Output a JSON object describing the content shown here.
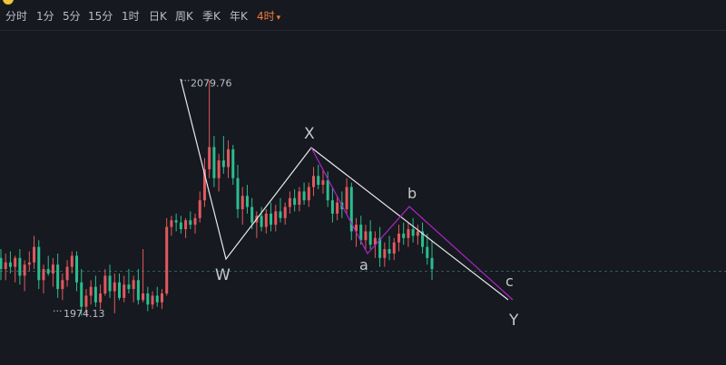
{
  "toolbar": {
    "periods": [
      {
        "label": "分时"
      },
      {
        "label": "1分"
      },
      {
        "label": "5分"
      },
      {
        "label": "15分"
      },
      {
        "label": "1时"
      },
      {
        "label": "日K"
      },
      {
        "label": "周K"
      },
      {
        "label": "季K"
      },
      {
        "label": "年K"
      },
      {
        "label": "4时",
        "active": true
      }
    ],
    "caret": "▾"
  },
  "colors": {
    "background": "#16191f",
    "up": "#e0595f",
    "down": "#2bbd8f",
    "wave_white": "#e8e8e8",
    "wave_purple": "#b024c9",
    "dashed_level": "#2f5a57",
    "active_period": "#f07c3e",
    "label": "#c7c9cc"
  },
  "chart_data": {
    "type": "candlestick",
    "price_range": [
      1955,
      2100
    ],
    "high_marker": {
      "label": "2079.76",
      "value": 2079.76
    },
    "low_marker": {
      "label": "1974.13",
      "value": 1974.13
    },
    "dashed_level": 1994,
    "candles": [
      [
        2000,
        2004,
        1990,
        1995
      ],
      [
        1995,
        2002,
        1990,
        1998
      ],
      [
        1998,
        2003,
        1993,
        1996
      ],
      [
        1996,
        2001,
        1989,
        2000
      ],
      [
        2000,
        2004,
        1988,
        1992
      ],
      [
        1992,
        1999,
        1985,
        1997
      ],
      [
        1997,
        2003,
        1994,
        1998
      ],
      [
        1998,
        2010,
        1995,
        2005
      ],
      [
        2005,
        2008,
        1986,
        1990
      ],
      [
        1990,
        1997,
        1984,
        1995
      ],
      [
        1995,
        2001,
        1992,
        1993
      ],
      [
        1993,
        2000,
        1987,
        1997
      ],
      [
        1997,
        2002,
        1982,
        1986
      ],
      [
        1986,
        1993,
        1981,
        1990
      ],
      [
        1990,
        1999,
        1987,
        1996
      ],
      [
        1996,
        2003,
        1993,
        2001
      ],
      [
        2001,
        2003,
        1985,
        1989
      ],
      [
        1989,
        1995,
        1974,
        1978
      ],
      [
        1978,
        1986,
        1974,
        1983
      ],
      [
        1983,
        1990,
        1979,
        1987
      ],
      [
        1987,
        1992,
        1978,
        1980
      ],
      [
        1980,
        1988,
        1977,
        1984
      ],
      [
        1984,
        1995,
        1983,
        1992
      ],
      [
        1992,
        1997,
        1982,
        1985
      ],
      [
        1985,
        1993,
        1975,
        1989
      ],
      [
        1989,
        1993,
        1981,
        1982
      ],
      [
        1982,
        1992,
        1980,
        1988
      ],
      [
        1988,
        1995,
        1984,
        1986
      ],
      [
        1986,
        1992,
        1980,
        1990
      ],
      [
        1990,
        1995,
        1979,
        1981
      ],
      [
        1981,
        2004,
        1980,
        1984
      ],
      [
        1984,
        1987,
        1976,
        1979
      ],
      [
        1979,
        1985,
        1977,
        1983
      ],
      [
        1983,
        1987,
        1978,
        1980
      ],
      [
        1980,
        1986,
        1977,
        1984
      ],
      [
        1984,
        2018,
        1983,
        2014
      ],
      [
        2014,
        2019,
        2010,
        2017
      ],
      [
        2017,
        2020,
        2012,
        2016
      ],
      [
        2016,
        2019,
        2011,
        2013
      ],
      [
        2013,
        2018,
        2009,
        2017
      ],
      [
        2017,
        2021,
        2013,
        2015
      ],
      [
        2015,
        2020,
        2011,
        2018
      ],
      [
        2018,
        2030,
        2016,
        2026
      ],
      [
        2026,
        2045,
        2023,
        2040
      ],
      [
        2040,
        2080,
        2036,
        2050
      ],
      [
        2050,
        2055,
        2032,
        2036
      ],
      [
        2036,
        2047,
        2030,
        2044
      ],
      [
        2044,
        2055,
        2038,
        2041
      ],
      [
        2041,
        2053,
        2036,
        2049
      ],
      [
        2049,
        2051,
        2033,
        2036
      ],
      [
        2036,
        2042,
        2018,
        2022
      ],
      [
        2022,
        2032,
        2015,
        2028
      ],
      [
        2028,
        2033,
        2020,
        2023
      ],
      [
        2023,
        2027,
        2013,
        2016
      ],
      [
        2016,
        2021,
        2009,
        2019
      ],
      [
        2019,
        2023,
        2012,
        2014
      ],
      [
        2014,
        2022,
        2011,
        2020
      ],
      [
        2020,
        2025,
        2012,
        2015
      ],
      [
        2015,
        2024,
        2012,
        2021
      ],
      [
        2021,
        2027,
        2016,
        2018
      ],
      [
        2018,
        2025,
        2015,
        2023
      ],
      [
        2023,
        2030,
        2020,
        2027
      ],
      [
        2027,
        2031,
        2021,
        2024
      ],
      [
        2024,
        2032,
        2021,
        2030
      ],
      [
        2030,
        2034,
        2024,
        2026
      ],
      [
        2026,
        2034,
        2023,
        2032
      ],
      [
        2032,
        2041,
        2028,
        2037
      ],
      [
        2037,
        2042,
        2031,
        2033
      ],
      [
        2033,
        2040,
        2029,
        2035
      ],
      [
        2035,
        2039,
        2023,
        2026
      ],
      [
        2026,
        2032,
        2016,
        2020
      ],
      [
        2020,
        2028,
        2017,
        2025
      ],
      [
        2025,
        2030,
        2018,
        2022
      ],
      [
        2022,
        2036,
        2020,
        2032
      ],
      [
        2032,
        2034,
        2008,
        2012
      ],
      [
        2012,
        2018,
        2005,
        2015
      ],
      [
        2015,
        2019,
        2006,
        2008
      ],
      [
        2008,
        2015,
        2004,
        2012
      ],
      [
        2012,
        2017,
        2004,
        2006
      ],
      [
        2006,
        2012,
        2000,
        2009
      ],
      [
        2009,
        2014,
        1996,
        2000
      ],
      [
        2000,
        2007,
        1996,
        2004
      ],
      [
        2004,
        2010,
        1999,
        2002
      ],
      [
        2002,
        2009,
        1999,
        2007
      ],
      [
        2007,
        2015,
        2003,
        2011
      ],
      [
        2011,
        2016,
        2006,
        2009
      ],
      [
        2009,
        2016,
        2005,
        2013
      ],
      [
        2013,
        2018,
        2007,
        2010
      ],
      [
        2010,
        2015,
        2006,
        2012
      ],
      [
        2012,
        2016,
        2002,
        2005
      ],
      [
        2005,
        2011,
        1997,
        2000
      ],
      [
        2000,
        2008,
        1990,
        1995
      ]
    ]
  },
  "wave_labels": [
    {
      "text": "X",
      "price": 2045
    },
    {
      "text": "W",
      "price": 1979
    },
    {
      "text": "b",
      "price": 2016
    },
    {
      "text": "a",
      "price": 1986
    },
    {
      "text": "c",
      "price": 1967
    },
    {
      "text": "Y",
      "price": 1953
    }
  ]
}
